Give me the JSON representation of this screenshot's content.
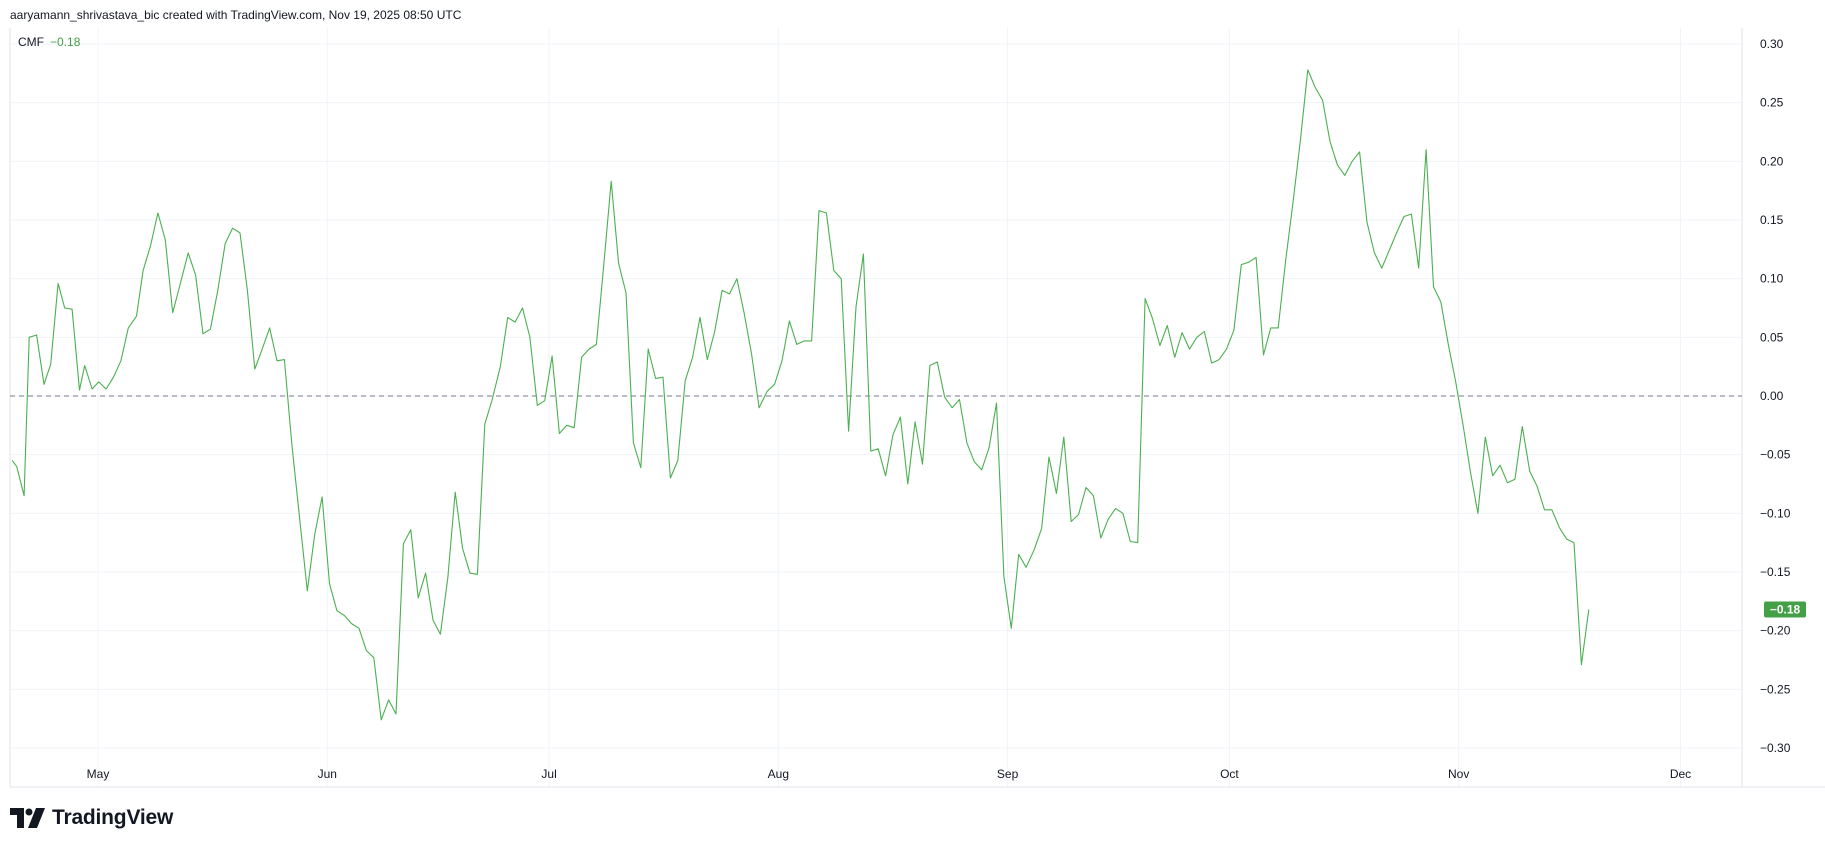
{
  "header": {
    "note": "aaryamann_shrivastava_bic created with TradingView.com, Nov 19, 2025 08:50 UTC"
  },
  "legend": {
    "name": "CMF",
    "value": "−0.18"
  },
  "brand": {
    "name": "TradingView"
  },
  "colors": {
    "line": "#4caf50",
    "tag_bg": "#43a047",
    "zero_line": "#787b86",
    "grid": "#f0f3fa",
    "text": "#131722"
  },
  "chart_data": {
    "type": "line",
    "title": "",
    "xlabel": "",
    "ylabel": "",
    "ylim": [
      -0.3,
      0.3
    ],
    "x_range_days": [
      -60,
      148
    ],
    "y_ticks": [
      "0.30",
      "0.25",
      "0.20",
      "0.15",
      "0.10",
      "0.05",
      "0.00",
      "−0.05",
      "−0.10",
      "−0.15",
      "−0.20",
      "−0.25",
      "−0.30"
    ],
    "x_ticks": [
      {
        "label": "May",
        "day": 0
      },
      {
        "label": "Jun",
        "day": 31
      },
      {
        "label": "Jul",
        "day": 61
      },
      {
        "label": "Aug",
        "day": 92
      },
      {
        "label": "Sep",
        "day": 123
      },
      {
        "label": "Oct",
        "day": 153
      },
      {
        "label": "Nov",
        "day": 184
      },
      {
        "label": "Dec",
        "day": 214
      }
    ],
    "zero_line": 0.0,
    "last_value_label": "−0.18",
    "last_value": -0.182,
    "series": [
      {
        "name": "CMF",
        "points": [
          [
            -11.6,
            -0.055
          ],
          [
            -11.0,
            -0.06
          ],
          [
            -10.0,
            -0.085
          ],
          [
            -9.3,
            0.05
          ],
          [
            -8.3,
            0.052
          ],
          [
            -7.3,
            0.01
          ],
          [
            -6.4,
            0.027
          ],
          [
            -5.4,
            0.096
          ],
          [
            -4.5,
            0.075
          ],
          [
            -3.5,
            0.074
          ],
          [
            -2.5,
            0.005
          ],
          [
            -1.8,
            0.026
          ],
          [
            -0.8,
            0.006
          ],
          [
            0.1,
            0.012
          ],
          [
            1.1,
            0.006
          ],
          [
            2.1,
            0.016
          ],
          [
            3.1,
            0.03
          ],
          [
            4.1,
            0.058
          ],
          [
            5.2,
            0.068
          ],
          [
            6.1,
            0.107
          ],
          [
            7.1,
            0.128
          ],
          [
            8.1,
            0.156
          ],
          [
            9.1,
            0.133
          ],
          [
            10.1,
            0.071
          ],
          [
            11.1,
            0.095
          ],
          [
            12.2,
            0.122
          ],
          [
            13.2,
            0.103
          ],
          [
            14.2,
            0.053
          ],
          [
            15.2,
            0.057
          ],
          [
            16.2,
            0.09
          ],
          [
            17.2,
            0.13
          ],
          [
            18.2,
            0.143
          ],
          [
            19.2,
            0.139
          ],
          [
            20.2,
            0.09
          ],
          [
            21.2,
            0.023
          ],
          [
            22.2,
            0.04
          ],
          [
            23.2,
            0.058
          ],
          [
            24.2,
            0.03
          ],
          [
            25.2,
            0.031
          ],
          [
            26.2,
            -0.04
          ],
          [
            27.2,
            -0.1
          ],
          [
            28.3,
            -0.166
          ],
          [
            29.3,
            -0.118
          ],
          [
            30.3,
            -0.086
          ],
          [
            31.3,
            -0.16
          ],
          [
            32.3,
            -0.183
          ],
          [
            33.3,
            -0.187
          ],
          [
            34.3,
            -0.194
          ],
          [
            35.3,
            -0.198
          ],
          [
            36.3,
            -0.217
          ],
          [
            37.3,
            -0.223
          ],
          [
            38.3,
            -0.276
          ],
          [
            39.3,
            -0.259
          ],
          [
            40.3,
            -0.271
          ],
          [
            41.3,
            -0.126
          ],
          [
            42.3,
            -0.114
          ],
          [
            43.3,
            -0.172
          ],
          [
            44.3,
            -0.151
          ],
          [
            45.3,
            -0.191
          ],
          [
            46.3,
            -0.203
          ],
          [
            47.3,
            -0.155
          ],
          [
            48.3,
            -0.082
          ],
          [
            49.3,
            -0.13
          ],
          [
            50.3,
            -0.151
          ],
          [
            51.3,
            -0.152
          ],
          [
            52.3,
            -0.024
          ],
          [
            53.3,
            -0.003
          ],
          [
            54.4,
            0.025
          ],
          [
            55.4,
            0.067
          ],
          [
            56.4,
            0.063
          ],
          [
            57.4,
            0.075
          ],
          [
            58.4,
            0.05
          ],
          [
            59.4,
            -0.008
          ],
          [
            60.4,
            -0.004
          ],
          [
            61.4,
            0.034
          ],
          [
            62.4,
            -0.032
          ],
          [
            63.4,
            -0.025
          ],
          [
            64.4,
            -0.027
          ],
          [
            65.4,
            0.033
          ],
          [
            66.4,
            0.04
          ],
          [
            67.4,
            0.044
          ],
          [
            68.4,
            0.112
          ],
          [
            69.4,
            0.183
          ],
          [
            70.4,
            0.113
          ],
          [
            71.4,
            0.088
          ],
          [
            72.4,
            -0.04
          ],
          [
            73.4,
            -0.061
          ],
          [
            74.4,
            0.04
          ],
          [
            75.4,
            0.015
          ],
          [
            76.4,
            0.016
          ],
          [
            77.4,
            -0.07
          ],
          [
            78.4,
            -0.055
          ],
          [
            79.4,
            0.013
          ],
          [
            80.4,
            0.033
          ],
          [
            81.4,
            0.067
          ],
          [
            82.4,
            0.031
          ],
          [
            83.4,
            0.055
          ],
          [
            84.4,
            0.09
          ],
          [
            85.4,
            0.087
          ],
          [
            86.4,
            0.1
          ],
          [
            87.4,
            0.07
          ],
          [
            88.4,
            0.035
          ],
          [
            89.4,
            -0.01
          ],
          [
            90.5,
            0.004
          ],
          [
            91.5,
            0.01
          ],
          [
            92.5,
            0.03
          ],
          [
            93.5,
            0.064
          ],
          [
            94.5,
            0.044
          ],
          [
            95.5,
            0.047
          ],
          [
            96.5,
            0.047
          ],
          [
            97.5,
            0.158
          ],
          [
            98.5,
            0.156
          ],
          [
            99.5,
            0.107
          ],
          [
            100.5,
            0.1
          ],
          [
            101.5,
            -0.03
          ],
          [
            102.5,
            0.076
          ],
          [
            103.5,
            0.121
          ],
          [
            104.5,
            -0.047
          ],
          [
            105.5,
            -0.045
          ],
          [
            106.5,
            -0.068
          ],
          [
            107.5,
            -0.033
          ],
          [
            108.5,
            -0.018
          ],
          [
            109.5,
            -0.075
          ],
          [
            110.5,
            -0.022
          ],
          [
            111.5,
            -0.058
          ],
          [
            112.5,
            0.026
          ],
          [
            113.5,
            0.029
          ],
          [
            114.5,
            -0.001
          ],
          [
            115.5,
            -0.01
          ],
          [
            116.5,
            -0.003
          ],
          [
            117.5,
            -0.04
          ],
          [
            118.5,
            -0.056
          ],
          [
            119.5,
            -0.063
          ],
          [
            120.5,
            -0.044
          ],
          [
            121.5,
            -0.006
          ],
          [
            122.5,
            -0.154
          ],
          [
            123.5,
            -0.198
          ],
          [
            124.5,
            -0.135
          ],
          [
            125.5,
            -0.146
          ],
          [
            126.6,
            -0.131
          ],
          [
            127.6,
            -0.113
          ],
          [
            128.6,
            -0.052
          ],
          [
            129.6,
            -0.083
          ],
          [
            130.6,
            -0.035
          ],
          [
            131.6,
            -0.107
          ],
          [
            132.6,
            -0.101
          ],
          [
            133.6,
            -0.078
          ],
          [
            134.6,
            -0.085
          ],
          [
            135.6,
            -0.121
          ],
          [
            136.6,
            -0.105
          ],
          [
            137.6,
            -0.096
          ],
          [
            138.6,
            -0.1
          ],
          [
            139.6,
            -0.124
          ],
          [
            140.6,
            -0.125
          ],
          [
            141.6,
            0.083
          ],
          [
            142.6,
            0.066
          ],
          [
            143.6,
            0.043
          ],
          [
            144.6,
            0.06
          ],
          [
            145.6,
            0.033
          ],
          [
            146.6,
            0.054
          ],
          [
            147.6,
            0.04
          ],
          [
            148.6,
            0.05
          ],
          [
            149.6,
            0.055
          ],
          [
            150.6,
            0.028
          ],
          [
            151.6,
            0.031
          ],
          [
            152.6,
            0.04
          ],
          [
            153.6,
            0.056
          ],
          [
            154.6,
            0.112
          ],
          [
            155.6,
            0.114
          ],
          [
            156.6,
            0.118
          ],
          [
            157.6,
            0.035
          ],
          [
            158.6,
            0.058
          ],
          [
            159.6,
            0.058
          ],
          [
            160.6,
            0.115
          ],
          [
            161.6,
            0.165
          ],
          [
            162.6,
            0.218
          ],
          [
            163.6,
            0.278
          ],
          [
            164.6,
            0.263
          ],
          [
            165.6,
            0.252
          ],
          [
            166.6,
            0.217
          ],
          [
            167.6,
            0.197
          ],
          [
            168.6,
            0.188
          ],
          [
            169.6,
            0.2
          ],
          [
            170.6,
            0.208
          ],
          [
            171.6,
            0.148
          ],
          [
            172.6,
            0.122
          ],
          [
            173.6,
            0.109
          ],
          [
            174.6,
            0.124
          ],
          [
            175.6,
            0.139
          ],
          [
            176.6,
            0.153
          ],
          [
            177.6,
            0.155
          ],
          [
            178.6,
            0.109
          ],
          [
            179.6,
            0.21
          ],
          [
            180.6,
            0.093
          ],
          [
            181.6,
            0.08
          ],
          [
            182.6,
            0.044
          ],
          [
            183.6,
            0.012
          ],
          [
            184.6,
            -0.025
          ],
          [
            185.6,
            -0.065
          ],
          [
            186.6,
            -0.1
          ],
          [
            187.6,
            -0.035
          ],
          [
            188.6,
            -0.068
          ],
          [
            189.6,
            -0.059
          ],
          [
            190.6,
            -0.074
          ],
          [
            191.6,
            -0.071
          ],
          [
            192.6,
            -0.026
          ],
          [
            193.6,
            -0.064
          ],
          [
            194.6,
            -0.077
          ],
          [
            195.6,
            -0.097
          ],
          [
            196.6,
            -0.097
          ],
          [
            197.6,
            -0.112
          ],
          [
            198.6,
            -0.122
          ],
          [
            199.6,
            -0.125
          ],
          [
            200.6,
            -0.229
          ],
          [
            201.6,
            -0.182
          ]
        ]
      }
    ]
  }
}
